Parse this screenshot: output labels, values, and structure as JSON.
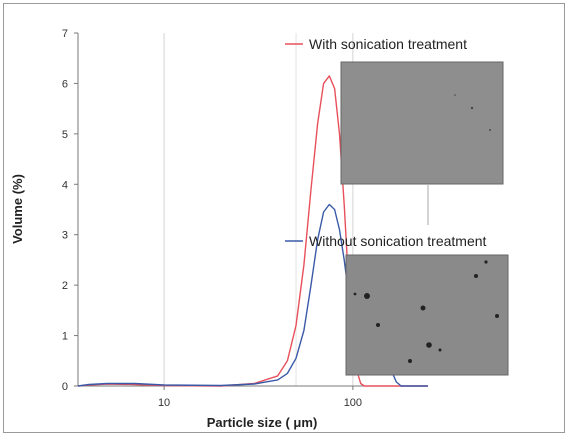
{
  "chart_data": {
    "type": "line",
    "xlabel": "Particle size ( μm)",
    "ylabel": "Volume (%)",
    "x_scale": "log",
    "xlim": [
      3.5,
      250
    ],
    "ylim": [
      0,
      7
    ],
    "x_ticks": [
      {
        "value": 10,
        "label": "10"
      },
      {
        "value": 100,
        "label": "100"
      }
    ],
    "y_ticks": [
      0,
      1,
      2,
      3,
      4,
      5,
      6,
      7
    ],
    "grid": {
      "vertical": true,
      "horizontal": false
    },
    "series": [
      {
        "name": "With sonication  treatment",
        "color": "#e8505b",
        "points": [
          [
            3.5,
            0.0
          ],
          [
            4,
            0.02
          ],
          [
            5,
            0.04
          ],
          [
            7,
            0.03
          ],
          [
            10,
            0.01
          ],
          [
            20,
            0.0
          ],
          [
            30,
            0.05
          ],
          [
            40,
            0.2
          ],
          [
            45,
            0.5
          ],
          [
            50,
            1.2
          ],
          [
            55,
            2.4
          ],
          [
            60,
            3.9
          ],
          [
            65,
            5.2
          ],
          [
            70,
            6.0
          ],
          [
            75,
            6.15
          ],
          [
            80,
            5.9
          ],
          [
            85,
            5.0
          ],
          [
            90,
            3.6
          ],
          [
            95,
            2.0
          ],
          [
            100,
            0.9
          ],
          [
            105,
            0.3
          ],
          [
            110,
            0.05
          ],
          [
            115,
            0.0
          ],
          [
            250,
            0.0
          ]
        ]
      },
      {
        "name": "Without sonication  treatment",
        "color": "#3a5aa8",
        "points": [
          [
            3.5,
            0.0
          ],
          [
            4,
            0.03
          ],
          [
            5,
            0.05
          ],
          [
            7,
            0.05
          ],
          [
            10,
            0.02
          ],
          [
            20,
            0.01
          ],
          [
            30,
            0.04
          ],
          [
            40,
            0.12
          ],
          [
            45,
            0.25
          ],
          [
            50,
            0.55
          ],
          [
            55,
            1.1
          ],
          [
            60,
            2.0
          ],
          [
            65,
            2.9
          ],
          [
            70,
            3.45
          ],
          [
            75,
            3.6
          ],
          [
            80,
            3.5
          ],
          [
            85,
            3.1
          ],
          [
            90,
            2.5
          ],
          [
            95,
            1.8
          ],
          [
            100,
            1.3
          ],
          [
            105,
            1.15
          ],
          [
            110,
            1.3
          ],
          [
            120,
            1.6
          ],
          [
            125,
            1.75
          ],
          [
            130,
            1.65
          ],
          [
            140,
            1.2
          ],
          [
            150,
            0.7
          ],
          [
            160,
            0.3
          ],
          [
            170,
            0.08
          ],
          [
            180,
            0.0
          ],
          [
            250,
            0.0
          ]
        ]
      }
    ],
    "insets": [
      {
        "name": "micrograph-with-sonication",
        "background": "#8e8e8e",
        "particles": "few small"
      },
      {
        "name": "micrograph-without-sonication",
        "background": "#8a8a8a",
        "particles": "several large dark"
      }
    ]
  }
}
